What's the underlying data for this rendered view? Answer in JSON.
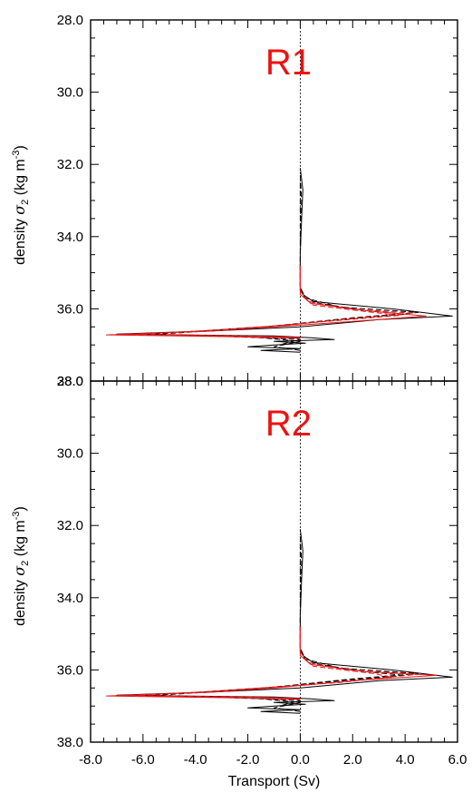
{
  "colors": {
    "black": "#000000",
    "red": "#e8191c",
    "label_red": "#ee1111"
  },
  "chart_data": [
    {
      "type": "line",
      "panel_label": "R1",
      "xlabel": "Transport (Sv)",
      "ylabel_main": "density",
      "ylabel_symbol": "σ",
      "ylabel_sub": "2",
      "ylabel_unit_a": "(kg m",
      "ylabel_unit_sup": "-3",
      "ylabel_unit_b": ")",
      "xlim": [
        -8,
        6
      ],
      "ylim": [
        28,
        38
      ],
      "y_inverted": true,
      "xticks": [
        -8,
        -6,
        -4,
        -2,
        0,
        2,
        4,
        6
      ],
      "xtick_labels": [
        "-8.0",
        "-6.0",
        "-4.0",
        "-2.0",
        "0.0",
        "2.0",
        "4.0",
        "6.0"
      ],
      "yticks": [
        28,
        30,
        32,
        34,
        36,
        38
      ],
      "ytick_labels": [
        "28.0",
        "30.0",
        "32.0",
        "34.0",
        "36.0",
        "38.0"
      ],
      "show_xtick_labels": false,
      "zero_line": "dotted",
      "series": [
        {
          "color": "black",
          "dash": "solid",
          "points": [
            [
              0.0,
              32.1
            ],
            [
              0.1,
              32.7
            ],
            [
              0.05,
              33.5
            ],
            [
              0.0,
              34.5
            ],
            [
              0.0,
              35.4
            ],
            [
              0.1,
              35.6
            ],
            [
              0.5,
              35.8
            ],
            [
              3.5,
              36.0
            ],
            [
              5.8,
              36.2
            ],
            [
              3.0,
              36.3
            ],
            [
              0.0,
              36.5
            ],
            [
              -3.0,
              36.6
            ],
            [
              -7.0,
              36.7
            ],
            [
              -1.0,
              36.75
            ],
            [
              0.4,
              36.8
            ],
            [
              1.3,
              36.85
            ],
            [
              -1.0,
              36.9
            ],
            [
              0.2,
              36.95
            ],
            [
              -1.0,
              37.0
            ],
            [
              -2.0,
              37.05
            ],
            [
              0.0,
              37.1
            ],
            [
              -1.5,
              37.15
            ],
            [
              0.0,
              37.2
            ]
          ]
        },
        {
          "color": "black",
          "dash": "dashed",
          "points": [
            [
              0.0,
              32.3
            ],
            [
              0.05,
              33.0
            ],
            [
              0.0,
              34.5
            ],
            [
              0.0,
              35.4
            ],
            [
              0.2,
              35.7
            ],
            [
              1.5,
              35.95
            ],
            [
              4.5,
              36.1
            ],
            [
              2.0,
              36.25
            ],
            [
              0.0,
              36.4
            ],
            [
              -2.0,
              36.55
            ],
            [
              -5.5,
              36.7
            ],
            [
              -1.5,
              36.8
            ],
            [
              0.0,
              36.9
            ],
            [
              -1.0,
              37.05
            ],
            [
              0.0,
              37.15
            ]
          ]
        },
        {
          "color": "black",
          "dash": "dashed",
          "points": [
            [
              0.0,
              32.5
            ],
            [
              0.0,
              34.5
            ],
            [
              0.0,
              35.5
            ],
            [
              0.3,
              35.8
            ],
            [
              2.5,
              36.05
            ],
            [
              4.0,
              36.15
            ],
            [
              1.5,
              36.3
            ],
            [
              -0.5,
              36.45
            ],
            [
              -3.5,
              36.6
            ],
            [
              -6.0,
              36.7
            ],
            [
              -2.0,
              36.78
            ],
            [
              0.0,
              36.85
            ],
            [
              -0.8,
              37.0
            ]
          ]
        },
        {
          "color": "red",
          "dash": "solid",
          "points": [
            [
              0.0,
              34.8
            ],
            [
              0.0,
              35.6
            ],
            [
              0.4,
              35.85
            ],
            [
              2.5,
              36.05
            ],
            [
              4.8,
              36.2
            ],
            [
              2.0,
              36.35
            ],
            [
              -1.0,
              36.5
            ],
            [
              -3.5,
              36.62
            ],
            [
              -7.4,
              36.72
            ],
            [
              -2.0,
              36.78
            ],
            [
              0.0,
              36.82
            ]
          ]
        },
        {
          "color": "red",
          "dash": "dashed",
          "points": [
            [
              0.0,
              34.8
            ],
            [
              0.0,
              35.5
            ],
            [
              0.3,
              35.8
            ],
            [
              1.8,
              36.0
            ],
            [
              4.3,
              36.12
            ],
            [
              1.5,
              36.3
            ],
            [
              -0.5,
              36.45
            ],
            [
              -3.0,
              36.6
            ],
            [
              -6.5,
              36.7
            ],
            [
              -1.5,
              36.76
            ],
            [
              0.0,
              36.8
            ]
          ]
        },
        {
          "color": "red",
          "dash": "dashed",
          "points": [
            [
              0.0,
              34.9
            ],
            [
              0.0,
              35.6
            ],
            [
              0.5,
              35.9
            ],
            [
              2.8,
              36.1
            ],
            [
              3.8,
              36.18
            ],
            [
              1.0,
              36.35
            ],
            [
              -1.5,
              36.5
            ],
            [
              -4.0,
              36.62
            ],
            [
              -6.8,
              36.71
            ],
            [
              -1.0,
              36.77
            ],
            [
              0.0,
              36.8
            ]
          ]
        }
      ]
    },
    {
      "type": "line",
      "panel_label": "R2",
      "xlabel": "Transport (Sv)",
      "ylabel_main": "density",
      "ylabel_symbol": "σ",
      "ylabel_sub": "2",
      "ylabel_unit_a": "(kg m",
      "ylabel_unit_sup": "-3",
      "ylabel_unit_b": ")",
      "xlim": [
        -8,
        6
      ],
      "ylim": [
        28,
        38
      ],
      "y_inverted": true,
      "xticks": [
        -8,
        -6,
        -4,
        -2,
        0,
        2,
        4,
        6
      ],
      "xtick_labels": [
        "-8.0",
        "-6.0",
        "-4.0",
        "-2.0",
        "0.0",
        "2.0",
        "4.0",
        "6.0"
      ],
      "yticks": [
        28,
        30,
        32,
        34,
        36,
        38
      ],
      "ytick_labels": [
        "28.0",
        "30.0",
        "32.0",
        "34.0",
        "36.0",
        "38.0"
      ],
      "show_xtick_labels": true,
      "zero_line": "dotted",
      "series": [
        {
          "color": "black",
          "dash": "solid",
          "points": [
            [
              0.0,
              32.1
            ],
            [
              0.1,
              32.7
            ],
            [
              0.05,
              33.5
            ],
            [
              0.0,
              34.5
            ],
            [
              0.0,
              35.4
            ],
            [
              0.1,
              35.6
            ],
            [
              0.5,
              35.8
            ],
            [
              3.5,
              36.0
            ],
            [
              5.8,
              36.2
            ],
            [
              3.0,
              36.3
            ],
            [
              0.0,
              36.5
            ],
            [
              -3.0,
              36.6
            ],
            [
              -7.0,
              36.7
            ],
            [
              -1.0,
              36.75
            ],
            [
              0.4,
              36.8
            ],
            [
              1.3,
              36.85
            ],
            [
              -1.0,
              36.9
            ],
            [
              0.2,
              36.95
            ],
            [
              -1.0,
              37.0
            ],
            [
              -2.0,
              37.05
            ],
            [
              0.0,
              37.1
            ],
            [
              -1.5,
              37.15
            ],
            [
              0.0,
              37.2
            ]
          ]
        },
        {
          "color": "black",
          "dash": "dashed",
          "points": [
            [
              0.0,
              32.3
            ],
            [
              0.05,
              33.0
            ],
            [
              0.0,
              34.5
            ],
            [
              0.0,
              35.4
            ],
            [
              0.2,
              35.7
            ],
            [
              1.5,
              35.95
            ],
            [
              4.5,
              36.1
            ],
            [
              2.0,
              36.25
            ],
            [
              0.0,
              36.4
            ],
            [
              -2.0,
              36.55
            ],
            [
              -5.5,
              36.7
            ],
            [
              -1.5,
              36.8
            ],
            [
              0.0,
              36.9
            ],
            [
              -1.0,
              37.05
            ],
            [
              0.0,
              37.15
            ]
          ]
        },
        {
          "color": "black",
          "dash": "dashed",
          "points": [
            [
              0.0,
              32.5
            ],
            [
              0.0,
              34.5
            ],
            [
              0.0,
              35.5
            ],
            [
              0.3,
              35.8
            ],
            [
              2.5,
              36.05
            ],
            [
              4.0,
              36.15
            ],
            [
              1.5,
              36.3
            ],
            [
              -0.5,
              36.45
            ],
            [
              -3.5,
              36.6
            ],
            [
              -6.0,
              36.7
            ],
            [
              -2.0,
              36.78
            ],
            [
              0.0,
              36.85
            ],
            [
              -0.8,
              37.0
            ]
          ]
        },
        {
          "color": "red",
          "dash": "solid",
          "points": [
            [
              0.0,
              34.8
            ],
            [
              0.0,
              35.6
            ],
            [
              0.4,
              35.85
            ],
            [
              2.5,
              36.05
            ],
            [
              5.2,
              36.15
            ],
            [
              2.0,
              36.3
            ],
            [
              -1.0,
              36.5
            ],
            [
              -3.5,
              36.62
            ],
            [
              -7.4,
              36.72
            ],
            [
              -2.0,
              36.78
            ],
            [
              0.0,
              36.82
            ]
          ]
        },
        {
          "color": "red",
          "dash": "dashed",
          "points": [
            [
              0.0,
              34.8
            ],
            [
              0.0,
              35.5
            ],
            [
              0.3,
              35.8
            ],
            [
              1.8,
              36.0
            ],
            [
              4.5,
              36.12
            ],
            [
              2.0,
              36.3
            ],
            [
              -0.5,
              36.45
            ],
            [
              -3.0,
              36.6
            ],
            [
              -6.5,
              36.7
            ],
            [
              -1.5,
              36.76
            ],
            [
              0.0,
              36.8
            ]
          ]
        },
        {
          "color": "red",
          "dash": "dashed",
          "points": [
            [
              0.0,
              34.9
            ],
            [
              0.0,
              35.6
            ],
            [
              0.5,
              35.9
            ],
            [
              2.8,
              36.1
            ],
            [
              3.5,
              36.2
            ],
            [
              1.5,
              36.35
            ],
            [
              -1.5,
              36.5
            ],
            [
              -4.0,
              36.62
            ],
            [
              -6.8,
              36.71
            ],
            [
              -1.0,
              36.77
            ],
            [
              0.0,
              36.8
            ]
          ]
        }
      ]
    }
  ]
}
